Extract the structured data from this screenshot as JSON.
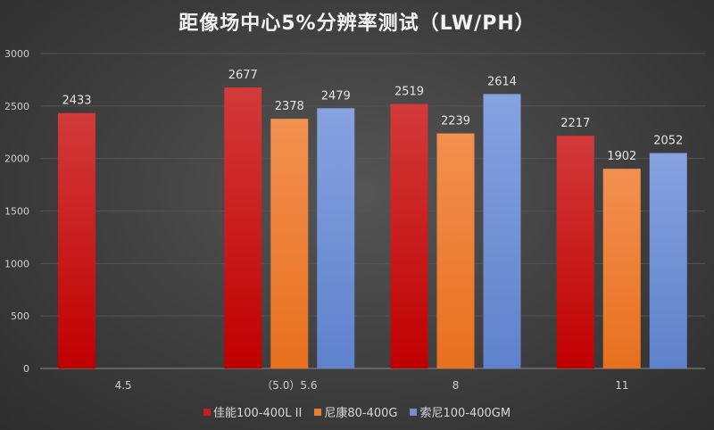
{
  "chart_data": {
    "type": "bar",
    "title": "距像场中心5%分辨率测试（LW/PH）",
    "xlabel": "",
    "ylabel": "",
    "categories": [
      "4.5",
      "（5.0）5.6",
      "8",
      "11"
    ],
    "ylim": [
      0,
      3000
    ],
    "yticks": [
      0,
      500,
      1000,
      1500,
      2000,
      2500,
      3000
    ],
    "grid": true,
    "legend_position": "bottom",
    "series": [
      {
        "name": "佳能100-400L II",
        "color": "#c81e1e",
        "values": [
          2433,
          2677,
          2519,
          2217
        ]
      },
      {
        "name": "尼康80-400G",
        "color": "#ed7d31",
        "values": [
          null,
          2378,
          2239,
          1902
        ]
      },
      {
        "name": "索尼100-400GM",
        "color": "#6f8fd4",
        "values": [
          null,
          2479,
          2614,
          2052
        ]
      }
    ]
  }
}
